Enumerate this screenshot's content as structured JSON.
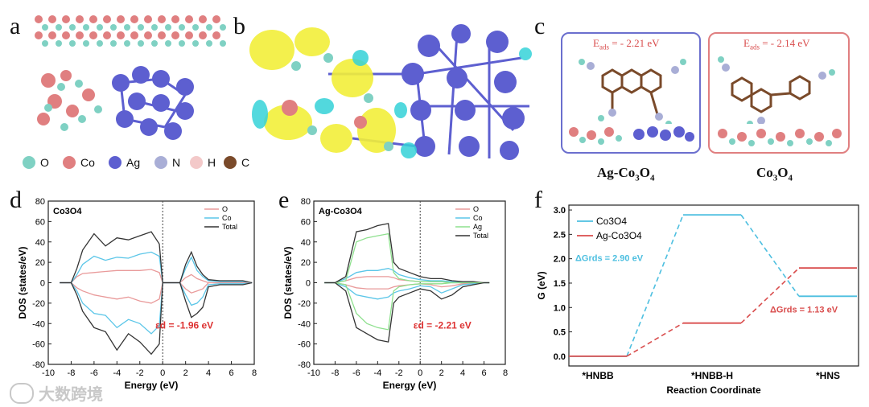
{
  "panels": {
    "a": "a",
    "b": "b",
    "c": "c",
    "d": "d",
    "e": "e",
    "f": "f"
  },
  "elements_legend": [
    {
      "label": "O",
      "color": "#7fd1c3"
    },
    {
      "label": "Co",
      "color": "#e07f80"
    },
    {
      "label": "Ag",
      "color": "#5d5fd0"
    },
    {
      "label": "N",
      "color": "#a9aed6"
    },
    {
      "label": "H",
      "color": "#f3c9c9"
    },
    {
      "label": "C",
      "color": "#7a4a2a"
    }
  ],
  "panel_c": {
    "ag_box": {
      "energy_label": "E",
      "energy_sub": "ads",
      "energy_value": " = - 2.21 eV",
      "caption": "Ag-Co",
      "caption_sub1": "3",
      "caption_mid": "O",
      "caption_sub2": "4"
    },
    "co_box": {
      "energy_label": "E",
      "energy_sub": "ads",
      "energy_value": " = - 2.14 eV",
      "caption": "Co",
      "caption_sub1": "3",
      "caption_mid": "O",
      "caption_sub2": "4"
    }
  },
  "watermark": "大数跨境",
  "chart_data": [
    {
      "type": "line",
      "panel": "d",
      "title": "Co3O4",
      "xlabel": "Energy (eV)",
      "ylabel": "DOS (states/eV)",
      "xlim": [
        -10,
        8
      ],
      "ylim": [
        -80,
        80
      ],
      "xticks": [
        -10,
        -8,
        -6,
        -4,
        -2,
        0,
        2,
        4,
        6,
        8
      ],
      "yticks": [
        -80,
        -60,
        -40,
        -20,
        0,
        20,
        40,
        60,
        80
      ],
      "annotation": "εd = -1.96 eV",
      "legend_position": "top-right",
      "series": [
        {
          "name": "O",
          "color": "#e99a9a",
          "x": [
            -9,
            -8,
            -7.5,
            -7,
            -6,
            -5,
            -4,
            -3,
            -2,
            -1,
            -0.3,
            0,
            0.5,
            1.5,
            2,
            2.5,
            3,
            3.5,
            4,
            5,
            6,
            7,
            7.8
          ],
          "y": [
            0,
            0,
            6,
            9,
            10,
            11,
            12,
            12,
            12,
            13,
            10,
            0,
            0,
            0,
            5,
            8,
            4,
            2,
            0,
            0,
            0,
            0,
            0
          ]
        },
        {
          "name": "Co",
          "color": "#5bc6e8",
          "x": [
            -9,
            -8,
            -7.5,
            -7,
            -6,
            -5,
            -4,
            -3,
            -2,
            -1,
            -0.3,
            0,
            0.5,
            1.5,
            2,
            2.5,
            3,
            3.5,
            4,
            5,
            6,
            7,
            7.8
          ],
          "y": [
            0,
            0,
            8,
            18,
            26,
            22,
            25,
            24,
            28,
            30,
            26,
            0,
            0,
            0,
            14,
            25,
            12,
            6,
            2,
            1,
            1,
            1,
            0
          ]
        },
        {
          "name": "Total",
          "color": "#333333",
          "x": [
            -9,
            -8,
            -7.5,
            -7,
            -6,
            -5,
            -4,
            -3,
            -2,
            -1,
            -0.3,
            0,
            0.5,
            1.5,
            2,
            2.5,
            3,
            3.5,
            4,
            5,
            6,
            7,
            7.8
          ],
          "y": [
            0,
            0,
            14,
            32,
            48,
            36,
            44,
            42,
            46,
            50,
            38,
            0,
            0,
            0,
            18,
            30,
            16,
            8,
            3,
            2,
            2,
            2,
            0
          ]
        },
        {
          "name": "O_down",
          "color": "#e99a9a",
          "x": [
            -9,
            -8,
            -7.5,
            -7,
            -6,
            -5,
            -4,
            -3,
            -2,
            -1,
            -0.3,
            0,
            0.5,
            1.5,
            2,
            2.5,
            3,
            3.5,
            4,
            5,
            6,
            7,
            7.8
          ],
          "y": [
            0,
            0,
            -5,
            -8,
            -12,
            -14,
            -16,
            -14,
            -18,
            -20,
            -16,
            0,
            0,
            0,
            -6,
            -10,
            -8,
            -6,
            0,
            0,
            0,
            0,
            0
          ]
        },
        {
          "name": "Co_down",
          "color": "#5bc6e8",
          "x": [
            -9,
            -8,
            -7.5,
            -7,
            -6,
            -5,
            -4,
            -3,
            -2,
            -1,
            -0.3,
            0,
            0.5,
            1.5,
            2,
            2.5,
            3,
            3.5,
            4,
            5,
            6,
            7,
            7.8
          ],
          "y": [
            0,
            0,
            -8,
            -20,
            -30,
            -32,
            -44,
            -36,
            -40,
            -50,
            -42,
            0,
            0,
            0,
            -12,
            -22,
            -20,
            -14,
            -2,
            -1,
            -1,
            -1,
            0
          ]
        },
        {
          "name": "Total_down",
          "color": "#333333",
          "x": [
            -9,
            -8,
            -7.5,
            -7,
            -6,
            -5,
            -4,
            -3,
            -2,
            -1,
            -0.3,
            0,
            0.5,
            1.5,
            2,
            2.5,
            3,
            3.5,
            4,
            5,
            6,
            7,
            7.8
          ],
          "y": [
            0,
            0,
            -12,
            -28,
            -44,
            -48,
            -66,
            -50,
            -58,
            -70,
            -60,
            0,
            0,
            0,
            -18,
            -34,
            -30,
            -24,
            -4,
            -2,
            -2,
            -2,
            0
          ]
        }
      ]
    },
    {
      "type": "line",
      "panel": "e",
      "title": "Ag-Co3O4",
      "xlabel": "Energy (eV)",
      "ylabel": "DOS (states/eV)",
      "xlim": [
        -10,
        8
      ],
      "ylim": [
        -80,
        80
      ],
      "xticks": [
        -10,
        -8,
        -6,
        -4,
        -2,
        0,
        2,
        4,
        6,
        8
      ],
      "yticks": [
        -80,
        -60,
        -40,
        -20,
        0,
        20,
        40,
        60,
        80
      ],
      "annotation": "εd = -2.21 eV",
      "legend_position": "top-right",
      "series": [
        {
          "name": "O",
          "color": "#e99a9a",
          "x": [
            -9,
            -8,
            -7,
            -6,
            -5,
            -4,
            -3,
            -2.5,
            -2,
            -1,
            0,
            1,
            2,
            3,
            4,
            5,
            6,
            6.5
          ],
          "y": [
            0,
            0,
            2,
            5,
            6,
            6,
            6,
            5,
            3,
            2,
            1,
            1,
            1,
            0,
            0,
            0,
            0,
            0
          ]
        },
        {
          "name": "Co",
          "color": "#5bc6e8",
          "x": [
            -9,
            -8,
            -7,
            -6,
            -5,
            -4,
            -3,
            -2.5,
            -2,
            -1,
            0,
            1,
            2,
            3,
            4,
            5,
            6,
            6.5
          ],
          "y": [
            0,
            0,
            4,
            10,
            12,
            12,
            14,
            12,
            8,
            5,
            3,
            2,
            2,
            1,
            1,
            0,
            0,
            0
          ]
        },
        {
          "name": "Ag",
          "color": "#8ee08e",
          "x": [
            -9,
            -8,
            -7,
            -6,
            -5,
            -4,
            -3,
            -2.5,
            -2,
            -1,
            0,
            1,
            2,
            3,
            4,
            5,
            6,
            6.5
          ],
          "y": [
            0,
            0,
            2,
            40,
            44,
            46,
            48,
            10,
            4,
            2,
            1,
            1,
            1,
            0,
            0,
            0,
            0,
            0
          ]
        },
        {
          "name": "Total",
          "color": "#333333",
          "x": [
            -9,
            -8,
            -7,
            -6,
            -5,
            -4,
            -3,
            -2.5,
            -2,
            -1,
            0,
            1,
            2,
            3,
            4,
            5,
            6,
            6.5
          ],
          "y": [
            0,
            0,
            6,
            50,
            52,
            56,
            58,
            20,
            14,
            10,
            6,
            4,
            4,
            2,
            1,
            1,
            0,
            0
          ]
        },
        {
          "name": "O_down",
          "color": "#e99a9a",
          "x": [
            -9,
            -8,
            -7,
            -6,
            -5,
            -4,
            -3,
            -2.5,
            -2,
            -1,
            0,
            1,
            2,
            3,
            4,
            5,
            6,
            6.5
          ],
          "y": [
            0,
            0,
            -2,
            -5,
            -6,
            -6,
            -6,
            -4,
            -3,
            -2,
            -1,
            -2,
            -4,
            -3,
            -1,
            0,
            0,
            0
          ]
        },
        {
          "name": "Co_down",
          "color": "#5bc6e8",
          "x": [
            -9,
            -8,
            -7,
            -6,
            -5,
            -4,
            -3,
            -2.5,
            -2,
            -1,
            0,
            1,
            2,
            3,
            4,
            5,
            6,
            6.5
          ],
          "y": [
            0,
            0,
            -4,
            -12,
            -14,
            -16,
            -14,
            -10,
            -8,
            -6,
            -3,
            -4,
            -10,
            -6,
            -2,
            -1,
            0,
            0
          ]
        },
        {
          "name": "Ag_down",
          "color": "#8ee08e",
          "x": [
            -9,
            -8,
            -7,
            -6,
            -5,
            -4,
            -3,
            -2.5,
            -2,
            -1,
            0,
            1,
            2,
            3,
            4,
            5,
            6,
            6.5
          ],
          "y": [
            0,
            0,
            -2,
            -30,
            -40,
            -44,
            -46,
            -8,
            -4,
            -2,
            -1,
            -1,
            -1,
            0,
            0,
            0,
            0,
            0
          ]
        },
        {
          "name": "Total_down",
          "color": "#333333",
          "x": [
            -9,
            -8,
            -7,
            -6,
            -5,
            -4,
            -3,
            -2.5,
            -2,
            -1,
            0,
            1,
            2,
            3,
            4,
            5,
            6,
            6.5
          ],
          "y": [
            0,
            0,
            -8,
            -44,
            -50,
            -56,
            -58,
            -20,
            -14,
            -10,
            -6,
            -8,
            -16,
            -12,
            -4,
            -2,
            0,
            0
          ]
        }
      ]
    },
    {
      "type": "line",
      "panel": "f",
      "xlabel": "Reaction Coordinate",
      "ylabel": "G (eV)",
      "ylim": [
        -0.2,
        3.1
      ],
      "yticks": [
        0.0,
        0.5,
        1.0,
        1.5,
        2.0,
        2.5,
        3.0
      ],
      "categories": [
        "*HNBB",
        "*HNBB-H",
        "*HNS"
      ],
      "legend_position": "top-left",
      "series": [
        {
          "name": "Co3O4",
          "color": "#4dbfe0",
          "values": [
            0.0,
            2.9,
            1.23
          ]
        },
        {
          "name": "Ag-Co3O4",
          "color": "#d94c4c",
          "values": [
            0.0,
            0.68,
            1.81
          ]
        }
      ],
      "annotations": [
        {
          "text": "ΔGrds = 2.90 eV",
          "color": "#4dbfe0"
        },
        {
          "text": "ΔGrds = 1.13 eV",
          "color": "#d94c4c"
        }
      ]
    }
  ]
}
